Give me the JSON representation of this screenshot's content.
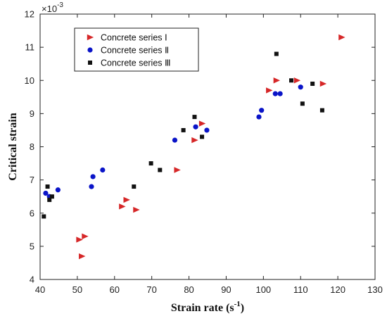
{
  "chart_data": {
    "type": "scatter",
    "xlabel": "Strain rate (s",
    "xlabel_sup": "-1",
    "xlabel_suffix": ")",
    "ylabel": "Critical strain",
    "y_multiplier": "×10",
    "y_multiplier_exp": "-3",
    "xlim": [
      40,
      130
    ],
    "ylim": [
      4,
      12
    ],
    "x_ticks": [
      40,
      50,
      60,
      70,
      80,
      90,
      100,
      110,
      120,
      130
    ],
    "y_ticks": [
      4,
      5,
      6,
      7,
      8,
      9,
      10,
      11,
      12
    ],
    "grid": false,
    "legend_position": "top-left",
    "series": [
      {
        "name": "Concrete series Ⅰ",
        "marker": "triangle-right",
        "color": "#d62728",
        "points": [
          [
            50.5,
            5.2
          ],
          [
            51.2,
            4.7
          ],
          [
            52.0,
            5.3
          ],
          [
            62.0,
            6.2
          ],
          [
            63.2,
            6.4
          ],
          [
            65.8,
            6.1
          ],
          [
            76.8,
            7.3
          ],
          [
            81.5,
            8.2
          ],
          [
            83.5,
            8.7
          ],
          [
            101.5,
            9.7
          ],
          [
            103.5,
            10.0
          ],
          [
            109.0,
            10.0
          ],
          [
            116.0,
            9.9
          ],
          [
            121.0,
            11.3
          ]
        ]
      },
      {
        "name": "Concrete series Ⅱ",
        "marker": "circle",
        "color": "#0a14c8",
        "points": [
          [
            41.5,
            6.6
          ],
          [
            42.5,
            6.5
          ],
          [
            44.8,
            6.7
          ],
          [
            53.8,
            6.8
          ],
          [
            54.2,
            7.1
          ],
          [
            56.8,
            7.3
          ],
          [
            76.2,
            8.2
          ],
          [
            81.8,
            8.6
          ],
          [
            84.8,
            8.5
          ],
          [
            98.8,
            8.9
          ],
          [
            99.5,
            9.1
          ],
          [
            103.2,
            9.6
          ],
          [
            104.5,
            9.6
          ],
          [
            110.0,
            9.8
          ]
        ]
      },
      {
        "name": "Concrete series Ⅲ",
        "marker": "square",
        "color": "#111111",
        "points": [
          [
            41.0,
            5.9
          ],
          [
            42.0,
            6.8
          ],
          [
            42.5,
            6.4
          ],
          [
            43.2,
            6.5
          ],
          [
            65.2,
            6.8
          ],
          [
            69.8,
            7.5
          ],
          [
            72.2,
            7.3
          ],
          [
            78.5,
            8.5
          ],
          [
            81.5,
            8.9
          ],
          [
            83.5,
            8.3
          ],
          [
            103.5,
            10.8
          ],
          [
            107.5,
            10.0
          ],
          [
            110.5,
            9.3
          ],
          [
            113.2,
            9.9
          ],
          [
            115.8,
            9.1
          ]
        ]
      }
    ]
  }
}
